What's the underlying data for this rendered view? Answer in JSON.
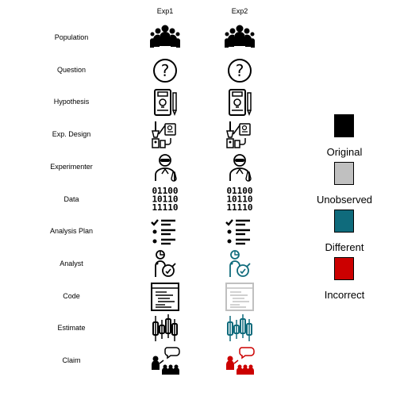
{
  "columns": [
    "Exp1",
    "Exp2"
  ],
  "rows": [
    {
      "label": "Population",
      "icon": "population-icon",
      "status": [
        "original",
        "original"
      ]
    },
    {
      "label": "Question",
      "icon": "question-icon",
      "status": [
        "original",
        "original"
      ]
    },
    {
      "label": "Hypothesis",
      "icon": "hypothesis-icon",
      "status": [
        "original",
        "original"
      ]
    },
    {
      "label": "Exp. Design",
      "icon": "exp-design-icon",
      "status": [
        "original",
        "original"
      ]
    },
    {
      "label": "Experimenter",
      "icon": "experimenter-icon",
      "status": [
        "original",
        "original"
      ]
    },
    {
      "label": "Data",
      "icon": "data-icon",
      "status": [
        "original",
        "original"
      ]
    },
    {
      "label": "Analysis Plan",
      "icon": "analysis-plan-icon",
      "status": [
        "original",
        "original"
      ]
    },
    {
      "label": "Analyst",
      "icon": "analyst-icon",
      "status": [
        "original",
        "different"
      ]
    },
    {
      "label": "Code",
      "icon": "code-icon",
      "status": [
        "original",
        "unobserved"
      ]
    },
    {
      "label": "Estimate",
      "icon": "estimate-icon",
      "status": [
        "original",
        "different"
      ]
    },
    {
      "label": "Claim",
      "icon": "claim-icon",
      "status": [
        "original",
        "incorrect"
      ]
    }
  ],
  "data_text": [
    "01100",
    "10110",
    "11110"
  ],
  "legend": [
    {
      "key": "original",
      "label": "Original",
      "color": "#000000"
    },
    {
      "key": "unobserved",
      "label": "Unobserved",
      "color": "#c0c0c0"
    },
    {
      "key": "different",
      "label": "Different",
      "color": "#0f6b7c"
    },
    {
      "key": "incorrect",
      "label": "Incorrect",
      "color": "#cc0000"
    }
  ]
}
